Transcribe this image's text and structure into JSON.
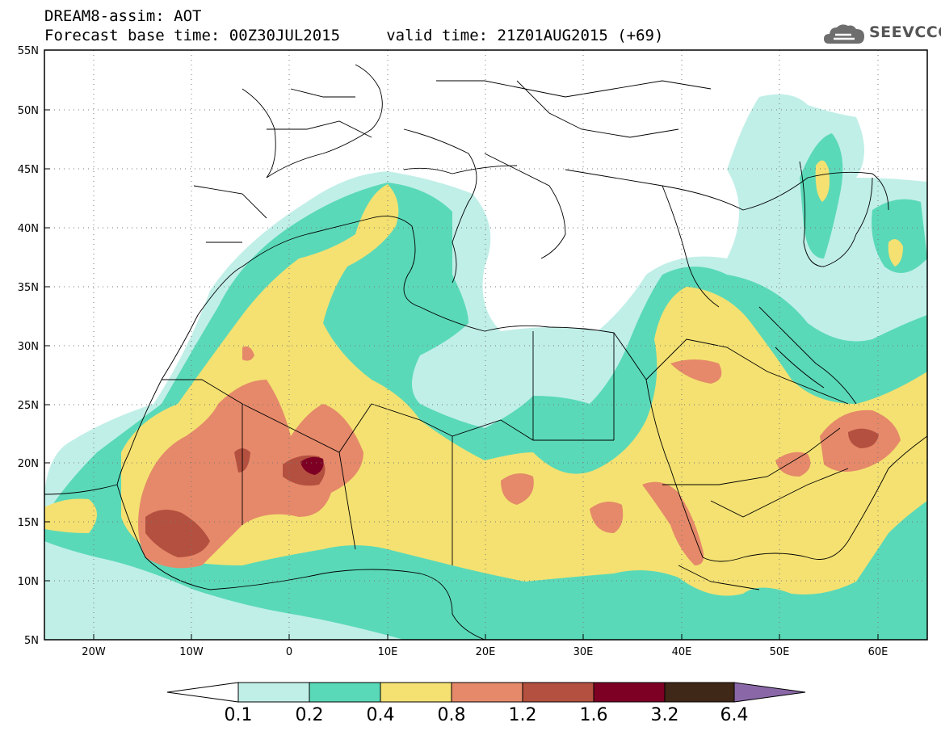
{
  "header": {
    "title_line1": "DREAM8-assim: AOT",
    "title_line2": "Forecast base time: 00Z30JUL2015     valid time: 21Z01AUG2015 (+69)",
    "logo_text": "SEEVCCC"
  },
  "map": {
    "lat_labels": [
      "55N",
      "50N",
      "45N",
      "40N",
      "35N",
      "30N",
      "25N",
      "20N",
      "15N",
      "10N",
      "5N"
    ],
    "lon_labels": [
      "20W",
      "10W",
      "0",
      "10E",
      "20E",
      "30E",
      "40E",
      "50E",
      "60E"
    ],
    "lat_range": [
      5,
      55
    ],
    "lon_range": [
      -25,
      65
    ],
    "gridlines": "dotted"
  },
  "legend": {
    "type": "colorbar",
    "labels": [
      "0.1",
      "0.2",
      "0.4",
      "0.8",
      "1.2",
      "1.6",
      "3.2",
      "6.4"
    ],
    "colors": [
      "#ffffff",
      "#c0efe8",
      "#5ad9b8",
      "#f4e171",
      "#e5896a",
      "#b4503f",
      "#7d0024",
      "#3f2817",
      "#8a68a8"
    ]
  },
  "colors": {
    "c1": "#c0efe8",
    "c2": "#5ad9b8",
    "c3": "#f4e171",
    "c4": "#e5896a",
    "c5": "#b4503f",
    "c6": "#7d0024"
  }
}
